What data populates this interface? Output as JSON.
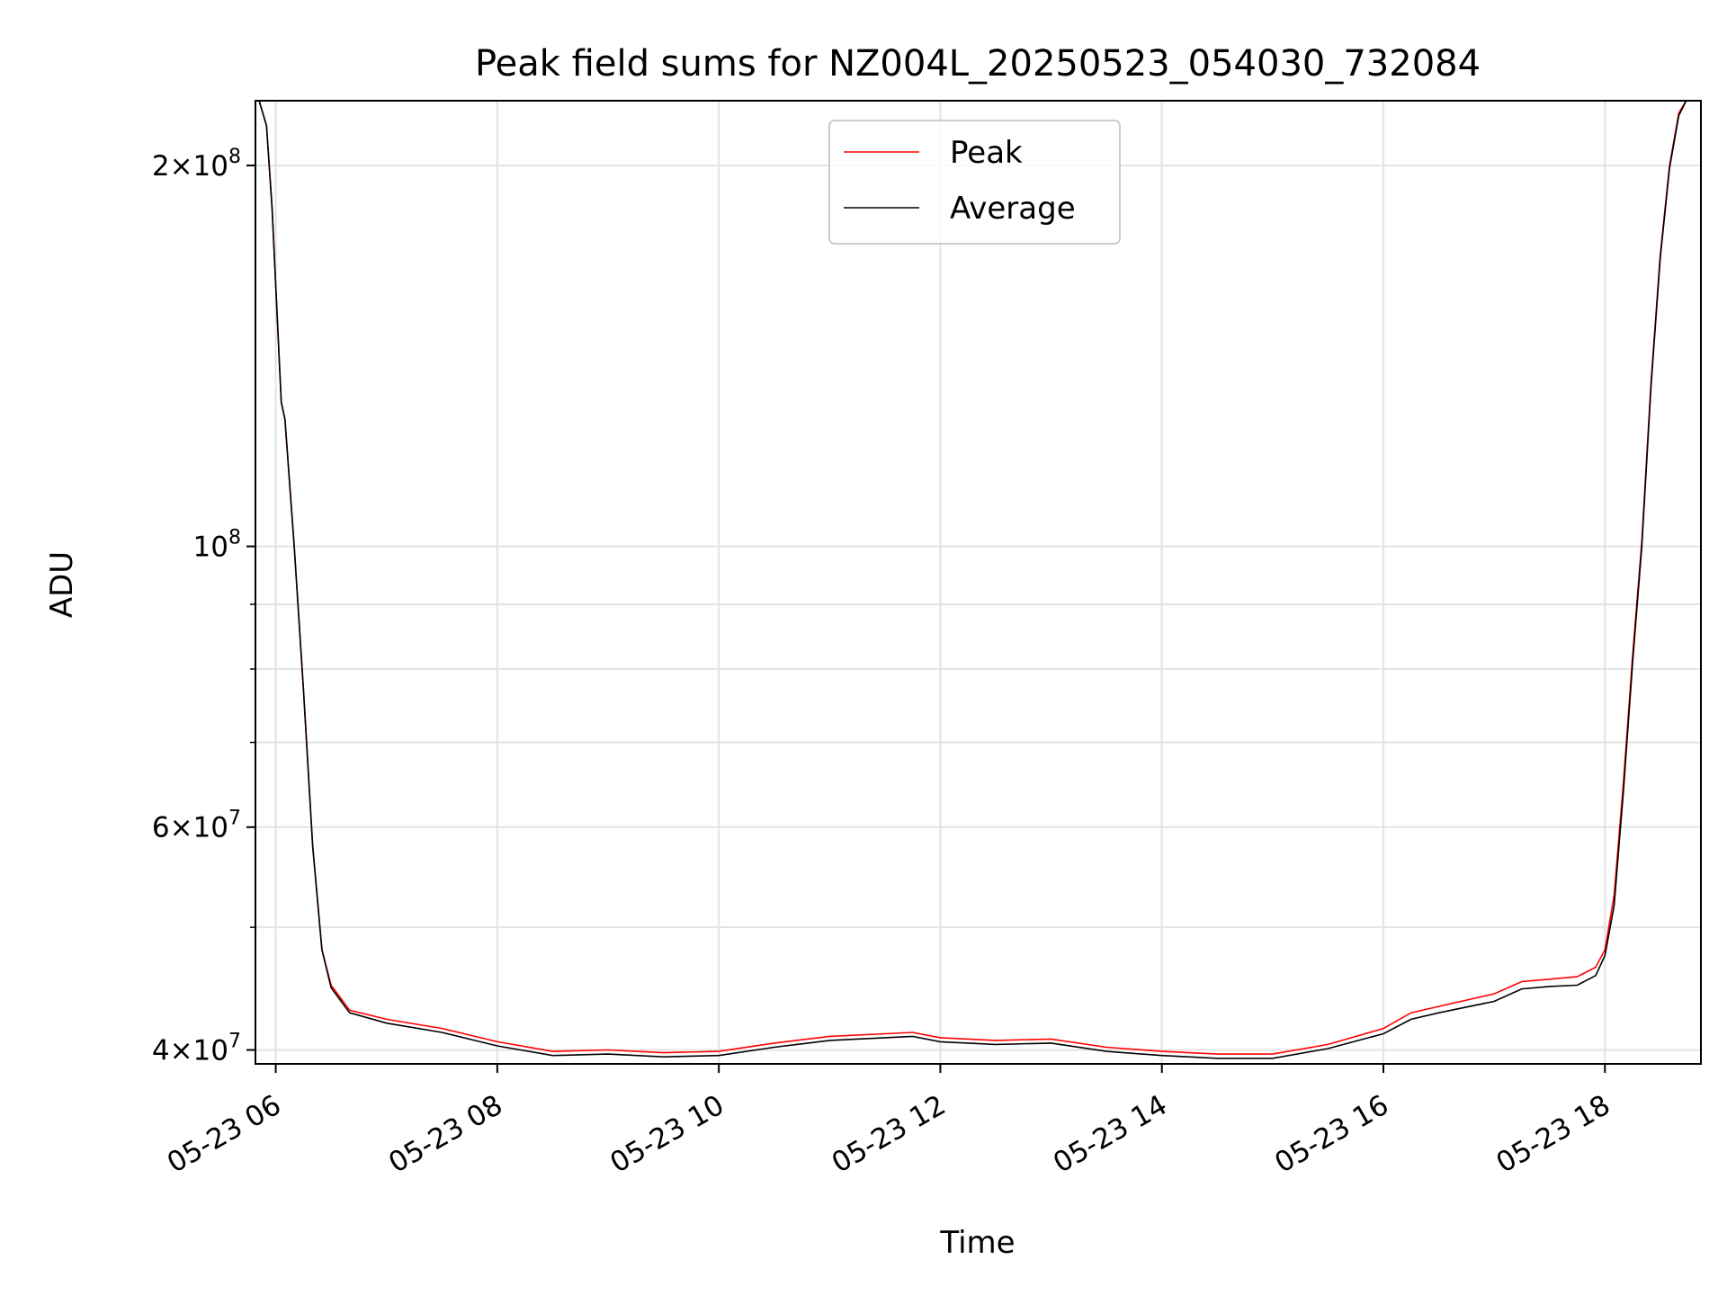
{
  "chart_data": {
    "type": "line",
    "title": "Peak field sums for NZ004L_20250523_054030_732084",
    "xlabel": "Time",
    "ylabel": "ADU",
    "y_scale": "log",
    "xlim": [
      "2025-05-23 05:49",
      "2025-05-23 18:52"
    ],
    "ylim": [
      39000000,
      225000000
    ],
    "grid": true,
    "legend_position": "upper center",
    "x_ticks": [
      {
        "t": "2025-05-23 06:00",
        "label": "05-23 06"
      },
      {
        "t": "2025-05-23 08:00",
        "label": "05-23 08"
      },
      {
        "t": "2025-05-23 10:00",
        "label": "05-23 10"
      },
      {
        "t": "2025-05-23 12:00",
        "label": "05-23 12"
      },
      {
        "t": "2025-05-23 14:00",
        "label": "05-23 14"
      },
      {
        "t": "2025-05-23 16:00",
        "label": "05-23 16"
      },
      {
        "t": "2025-05-23 18:00",
        "label": "05-23 18"
      }
    ],
    "y_ticks": [
      {
        "value": 40000000,
        "mant": "4",
        "exp": "7"
      },
      {
        "value": 60000000,
        "mant": "6",
        "exp": "7"
      },
      {
        "value": 100000000,
        "mant": "",
        "exp": "8"
      },
      {
        "value": 200000000,
        "mant": "2",
        "exp": "8"
      }
    ],
    "y_minor": [
      50000000,
      70000000,
      80000000,
      90000000
    ],
    "series": [
      {
        "name": "Peak",
        "color": "#ff0000",
        "points": [
          [
            "2025-05-23 05:51",
            225000000
          ],
          [
            "2025-05-23 05:55",
            215000000
          ],
          [
            "2025-05-23 05:58",
            185000000
          ],
          [
            "2025-05-23 06:03",
            130000000
          ],
          [
            "2025-05-23 06:05",
            126000000
          ],
          [
            "2025-05-23 06:10",
            100000000
          ],
          [
            "2025-05-23 06:15",
            77000000
          ],
          [
            "2025-05-23 06:20",
            58000000
          ],
          [
            "2025-05-23 06:25",
            48000000
          ],
          [
            "2025-05-23 06:30",
            45000000
          ],
          [
            "2025-05-23 06:40",
            43000000
          ],
          [
            "2025-05-23 07:00",
            42300000
          ],
          [
            "2025-05-23 07:30",
            41600000
          ],
          [
            "2025-05-23 08:00",
            40600000
          ],
          [
            "2025-05-23 08:30",
            39900000
          ],
          [
            "2025-05-23 09:00",
            40000000
          ],
          [
            "2025-05-23 09:30",
            39800000
          ],
          [
            "2025-05-23 10:00",
            39900000
          ],
          [
            "2025-05-23 10:30",
            40500000
          ],
          [
            "2025-05-23 11:00",
            41000000
          ],
          [
            "2025-05-23 11:30",
            41200000
          ],
          [
            "2025-05-23 11:45",
            41300000
          ],
          [
            "2025-05-23 12:00",
            40900000
          ],
          [
            "2025-05-23 12:30",
            40700000
          ],
          [
            "2025-05-23 13:00",
            40800000
          ],
          [
            "2025-05-23 13:30",
            40200000
          ],
          [
            "2025-05-23 14:00",
            39900000
          ],
          [
            "2025-05-23 14:30",
            39700000
          ],
          [
            "2025-05-23 15:00",
            39700000
          ],
          [
            "2025-05-23 15:30",
            40400000
          ],
          [
            "2025-05-23 16:00",
            41600000
          ],
          [
            "2025-05-23 16:15",
            42800000
          ],
          [
            "2025-05-23 16:30",
            43300000
          ],
          [
            "2025-05-23 17:00",
            44300000
          ],
          [
            "2025-05-23 17:15",
            45300000
          ],
          [
            "2025-05-23 17:30",
            45500000
          ],
          [
            "2025-05-23 17:45",
            45700000
          ],
          [
            "2025-05-23 17:55",
            46500000
          ],
          [
            "2025-05-23 18:00",
            48000000
          ],
          [
            "2025-05-23 18:05",
            53000000
          ],
          [
            "2025-05-23 18:10",
            65000000
          ],
          [
            "2025-05-23 18:15",
            82000000
          ],
          [
            "2025-05-23 18:20",
            101000000
          ],
          [
            "2025-05-23 18:25",
            135000000
          ],
          [
            "2025-05-23 18:30",
            170000000
          ],
          [
            "2025-05-23 18:35",
            200000000
          ],
          [
            "2025-05-23 18:40",
            220000000
          ],
          [
            "2025-05-23 18:44",
            225000000
          ],
          [
            "2025-05-23 18:52",
            225000000
          ]
        ]
      },
      {
        "name": "Average",
        "color": "#000000",
        "points": [
          [
            "2025-05-23 05:51",
            225000000
          ],
          [
            "2025-05-23 05:55",
            215000000
          ],
          [
            "2025-05-23 05:58",
            185000000
          ],
          [
            "2025-05-23 06:03",
            130000000
          ],
          [
            "2025-05-23 06:05",
            126000000
          ],
          [
            "2025-05-23 06:10",
            100000000
          ],
          [
            "2025-05-23 06:15",
            77000000
          ],
          [
            "2025-05-23 06:20",
            58000000
          ],
          [
            "2025-05-23 06:25",
            48000000
          ],
          [
            "2025-05-23 06:30",
            44800000
          ],
          [
            "2025-05-23 06:40",
            42800000
          ],
          [
            "2025-05-23 07:00",
            42000000
          ],
          [
            "2025-05-23 07:30",
            41300000
          ],
          [
            "2025-05-23 08:00",
            40300000
          ],
          [
            "2025-05-23 08:30",
            39600000
          ],
          [
            "2025-05-23 09:00",
            39700000
          ],
          [
            "2025-05-23 09:30",
            39500000
          ],
          [
            "2025-05-23 10:00",
            39600000
          ],
          [
            "2025-05-23 10:30",
            40200000
          ],
          [
            "2025-05-23 11:00",
            40700000
          ],
          [
            "2025-05-23 11:30",
            40900000
          ],
          [
            "2025-05-23 11:45",
            41000000
          ],
          [
            "2025-05-23 12:00",
            40600000
          ],
          [
            "2025-05-23 12:30",
            40400000
          ],
          [
            "2025-05-23 13:00",
            40500000
          ],
          [
            "2025-05-23 13:30",
            39900000
          ],
          [
            "2025-05-23 14:00",
            39600000
          ],
          [
            "2025-05-23 14:30",
            39400000
          ],
          [
            "2025-05-23 15:00",
            39400000
          ],
          [
            "2025-05-23 15:30",
            40100000
          ],
          [
            "2025-05-23 16:00",
            41200000
          ],
          [
            "2025-05-23 16:15",
            42300000
          ],
          [
            "2025-05-23 16:30",
            42800000
          ],
          [
            "2025-05-23 17:00",
            43700000
          ],
          [
            "2025-05-23 17:15",
            44700000
          ],
          [
            "2025-05-23 17:30",
            44900000
          ],
          [
            "2025-05-23 17:45",
            45000000
          ],
          [
            "2025-05-23 17:55",
            45800000
          ],
          [
            "2025-05-23 18:00",
            47500000
          ],
          [
            "2025-05-23 18:05",
            52000000
          ],
          [
            "2025-05-23 18:10",
            64000000
          ],
          [
            "2025-05-23 18:15",
            81000000
          ],
          [
            "2025-05-23 18:20",
            100000000
          ],
          [
            "2025-05-23 18:25",
            134000000
          ],
          [
            "2025-05-23 18:30",
            169000000
          ],
          [
            "2025-05-23 18:35",
            199000000
          ],
          [
            "2025-05-23 18:40",
            219000000
          ],
          [
            "2025-05-23 18:44",
            225000000
          ],
          [
            "2025-05-23 18:52",
            225000000
          ]
        ]
      }
    ]
  }
}
